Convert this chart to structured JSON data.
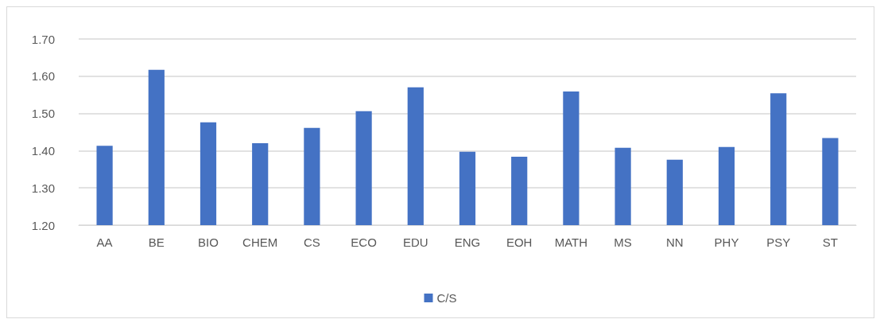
{
  "chart_data": {
    "type": "bar",
    "categories": [
      "AA",
      "BE",
      "BIO",
      "CHEM",
      "CS",
      "ECO",
      "EDU",
      "ENG",
      "EOH",
      "MATH",
      "MS",
      "NN",
      "PHY",
      "PSY",
      "ST"
    ],
    "series": [
      {
        "name": "C/S",
        "color": "#4472c4",
        "values": [
          1.413,
          1.617,
          1.476,
          1.42,
          1.461,
          1.506,
          1.57,
          1.397,
          1.384,
          1.559,
          1.408,
          1.376,
          1.41,
          1.554,
          1.434
        ]
      }
    ],
    "ylim": [
      1.2,
      1.7
    ],
    "yticks": [
      {
        "value": 1.2,
        "label": "1.20"
      },
      {
        "value": 1.3,
        "label": "1.30"
      },
      {
        "value": 1.4,
        "label": "1.40"
      },
      {
        "value": 1.5,
        "label": "1.50"
      },
      {
        "value": 1.6,
        "label": "1.60"
      },
      {
        "value": 1.7,
        "label": "1.70"
      }
    ],
    "grid": "y",
    "legend": "bottom"
  }
}
